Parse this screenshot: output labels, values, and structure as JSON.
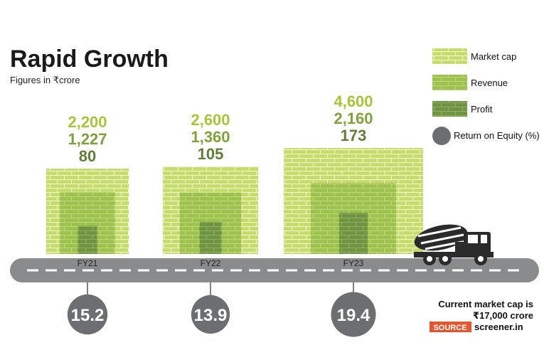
{
  "header": {
    "title": "Rapid Growth",
    "subtitle": "Figures in ₹crore"
  },
  "legend": {
    "items": [
      {
        "label": "Market cap",
        "color": "#c5db6a",
        "shape": "brick"
      },
      {
        "label": "Revenue",
        "color": "#9dc24c",
        "shape": "brick"
      },
      {
        "label": "Profit",
        "color": "#6f9340",
        "shape": "brick"
      },
      {
        "label": "Return on Equity (%)",
        "color": "#6d6e71",
        "shape": "circle"
      }
    ]
  },
  "chart_data": {
    "type": "bar",
    "categories": [
      "FY21",
      "FY22",
      "FY23"
    ],
    "series": [
      {
        "name": "Market cap",
        "values": [
          2200,
          2600,
          4600
        ],
        "color": "#c5db6a"
      },
      {
        "name": "Revenue",
        "values": [
          1227,
          1360,
          2160
        ],
        "color": "#9dc24c"
      },
      {
        "name": "Profit",
        "values": [
          80,
          105,
          173
        ],
        "color": "#6f9340"
      },
      {
        "name": "Return on Equity (%)",
        "values": [
          15.2,
          13.9,
          19.4
        ],
        "color": "#6d6e71"
      }
    ],
    "value_labels": [
      [
        "2,200",
        "2,600",
        "4,600"
      ],
      [
        "1,227",
        "1,360",
        "2,160"
      ],
      [
        "80",
        "105",
        "173"
      ],
      [
        "15.2",
        "13.9",
        "19.4"
      ]
    ],
    "label_colors": [
      "#a9c437",
      "#7ea33a",
      "#5e7f35"
    ],
    "title": "Rapid Growth",
    "subtitle": "Figures in ₹crore"
  },
  "footer": {
    "note_line1": "Current market cap is",
    "note_line2": "₹17,000 crore",
    "source_tag": "SOURCE",
    "source_text": "screener.in",
    "source_tag_color": "#e4572e"
  },
  "icons": {
    "truck": "cement-mixer-truck-icon"
  }
}
